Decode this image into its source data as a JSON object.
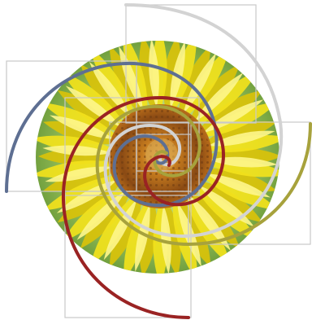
{
  "image": {
    "subject": "sunflower",
    "background": "#ffffff",
    "colors": {
      "petal_light": "#fdf58a",
      "petal": "#f2e21c",
      "petal_dark": "#d9c20a",
      "foliage": "#6f9e3c",
      "foliage_light": "#a9cf6a",
      "center_outer": "#b96d1a",
      "center_inner": "#6b3a10",
      "frame_lines": "#c9c9c9",
      "spiral_silver": "#d3d3d3",
      "spiral_steel": "#5e6f92",
      "spiral_olive": "#a7a23c",
      "spiral_crimson": "#9a2323"
    }
  }
}
